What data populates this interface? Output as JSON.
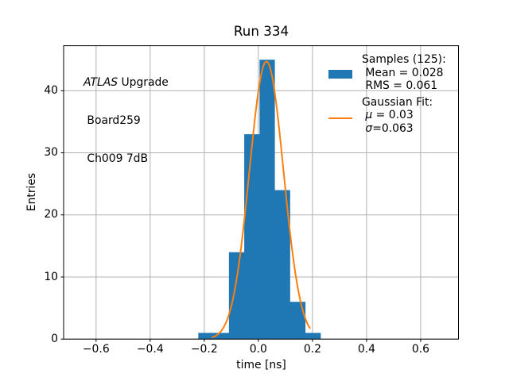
{
  "chart_data": {
    "type": "histogram",
    "title": "Run 334",
    "xlabel": "time [ns]",
    "ylabel": "Entries",
    "xlim": [
      -0.72,
      0.74
    ],
    "ylim": [
      0,
      47.25
    ],
    "grid": true,
    "grid_color": "#b0b0b0",
    "legend_position": "upper right",
    "xticks": {
      "values": [
        -0.6,
        -0.4,
        -0.2,
        0.0,
        0.2,
        0.4,
        0.6
      ],
      "labels": [
        "−0.6",
        "−0.4",
        "−0.2",
        "0.0",
        "0.2",
        "0.4",
        "0.6"
      ]
    },
    "yticks": {
      "values": [
        0,
        10,
        20,
        30,
        40
      ],
      "labels": [
        "0",
        "10",
        "20",
        "30",
        "40"
      ]
    },
    "histogram": {
      "bin_edges": [
        -0.222,
        -0.1654,
        -0.1088,
        -0.0522,
        0.0044,
        0.061,
        0.1176,
        0.1742,
        0.2308
      ],
      "counts": [
        1,
        1,
        14,
        33,
        45,
        24,
        6,
        1
      ],
      "total_entries": 125,
      "mean": 0.028,
      "rms": 0.061,
      "color": "#1f77b4"
    },
    "gaussian_fit": {
      "amplitude": 44.7,
      "mu": 0.03,
      "sigma": 0.063,
      "x_range": [
        -0.17,
        0.19
      ],
      "color": "#ff7f0e"
    }
  },
  "annotation": {
    "title_italic": "ATLAS",
    "title_rest": " Upgrade",
    "line2": " Board259",
    "line3": " Ch009 7dB"
  },
  "legend": {
    "samples_title": "Samples (125):",
    "mean_line": " Mean = 0.028",
    "rms_line": " RMS = 0.061",
    "fit_title": "Gaussian Fit:",
    "mu_prefix": " ",
    "mu_symbol": "μ",
    "mu_rest": " = 0.03",
    "sigma_prefix": " ",
    "sigma_symbol": "σ",
    "sigma_rest": "=0.063"
  }
}
